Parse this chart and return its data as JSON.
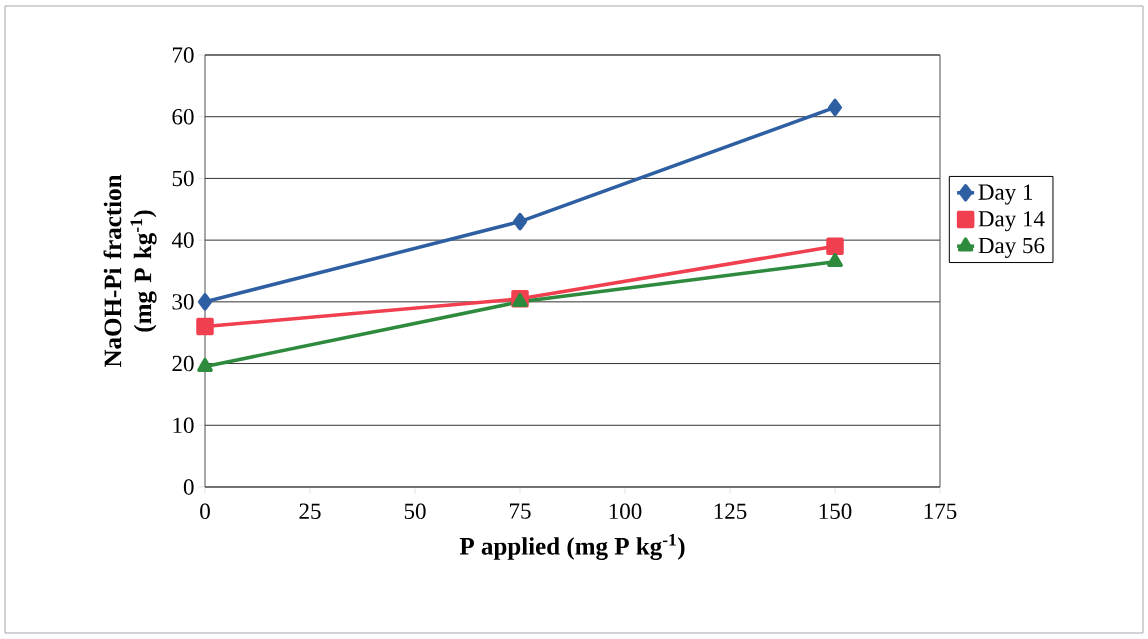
{
  "chart_data": {
    "type": "line",
    "xlabel": "P applied (mg P kg$^{-1}$)",
    "ylabel": "NaOH-Pi fraction (mg P kg$^{-1}$)",
    "x": [
      0,
      75,
      150
    ],
    "series": [
      {
        "name": "Day 1",
        "color": "#2e5fa3",
        "marker": "diamond",
        "values": [
          30,
          43,
          61.5
        ]
      },
      {
        "name": "Day 14",
        "color": "#f04050",
        "marker": "square",
        "values": [
          26,
          30.5,
          39
        ]
      },
      {
        "name": "Day 56",
        "color": "#2e8b3e",
        "marker": "triangle",
        "values": [
          19.5,
          30,
          36.5
        ]
      }
    ],
    "xlim": [
      0,
      175
    ],
    "xticks": [
      0,
      25,
      50,
      75,
      100,
      125,
      150,
      175
    ],
    "ylim": [
      0,
      70
    ],
    "yticks": [
      0,
      10,
      20,
      30,
      40,
      50,
      60,
      70
    ],
    "grid": "y",
    "legend": "right",
    "line_style": "solid"
  }
}
